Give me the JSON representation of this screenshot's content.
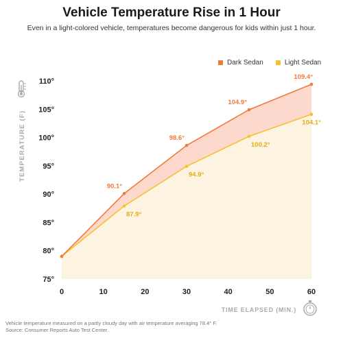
{
  "title": "Vehicle Temperature Rise in 1 Hour",
  "subtitle": "Even in a light-colored vehicle, temperatures become dangerous for kids within just 1 hour.",
  "footnote": {
    "line1": "Vehicle temperature measured on a partly cloudy day with air temperature averaging 78.4° F.",
    "line2": "Source: Consumer Reports Auto Test Center."
  },
  "colors": {
    "dark": "#f07a3a",
    "light": "#f6c12e",
    "dark_fill": "#fcd9cc",
    "light_fill": "#fdf3e1",
    "axis_text": "#222222",
    "axis_label": "#aaaaaa"
  },
  "icons": {
    "y_axis": "thermometer-icon",
    "x_axis": "stopwatch-icon"
  },
  "chart_data": {
    "type": "area",
    "x": [
      0,
      15,
      30,
      45,
      60
    ],
    "xticks": [
      0,
      10,
      20,
      30,
      40,
      50,
      60
    ],
    "xtick_labels": [
      "0",
      "10",
      "20",
      "30",
      "40",
      "50",
      "60"
    ],
    "yticks": [
      75,
      80,
      85,
      90,
      95,
      100,
      105,
      110
    ],
    "ytick_labels": [
      "75°",
      "80°",
      "85°",
      "90°",
      "95°",
      "100°",
      "105°",
      "110°"
    ],
    "xlim": [
      0,
      60
    ],
    "ylim": [
      75,
      110
    ],
    "xlabel": "TIME ELAPSED (MIN.)",
    "ylabel": "TEMPERATURE (F)",
    "grid": false,
    "legend_position": "top-right",
    "series": [
      {
        "name": "Dark Sedan",
        "values": [
          79,
          90.1,
          98.6,
          104.9,
          109.4
        ],
        "labels": [
          "",
          "90.1°",
          "98.6°",
          "104.9°",
          "109.4°"
        ]
      },
      {
        "name": "Light Sedan",
        "values": [
          79,
          87.9,
          94.9,
          100.2,
          104.1
        ],
        "labels": [
          "",
          "87.9°",
          "94.9°",
          "100.2°",
          "104.1°"
        ]
      }
    ]
  }
}
